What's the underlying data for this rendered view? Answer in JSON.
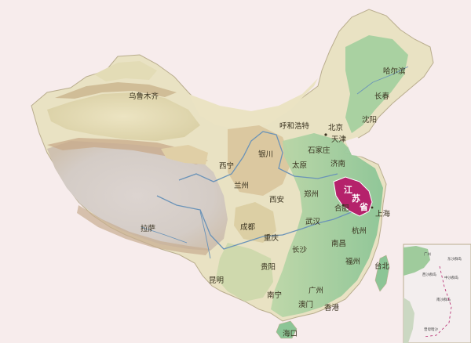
{
  "map": {
    "highlight_province": {
      "name_parts": [
        "江",
        "苏",
        "省"
      ],
      "color": "#b5226b"
    },
    "colors": {
      "background": "#f7ecec",
      "lowland_green": "#9fcb9c",
      "plain_light": "#e9e2c3",
      "desert": "#e5ddb8",
      "plateau_grey": "#d9d3cf",
      "mountain_brown": "#cdb48a",
      "river": "#6a93b8",
      "sea_green": "#78c49a"
    },
    "cities": [
      {
        "id": "urumqi",
        "label": "乌鲁木齐"
      },
      {
        "id": "harbin",
        "label": "哈尔滨"
      },
      {
        "id": "changchun",
        "label": "长春"
      },
      {
        "id": "shenyang",
        "label": "沈阳"
      },
      {
        "id": "hohhot",
        "label": "呼和浩特"
      },
      {
        "id": "beijing",
        "label": "北京"
      },
      {
        "id": "tianjin",
        "label": "天津"
      },
      {
        "id": "yinchuan",
        "label": "银川"
      },
      {
        "id": "shijiazhuang",
        "label": "石家庄"
      },
      {
        "id": "taiyuan",
        "label": "太原"
      },
      {
        "id": "jinan",
        "label": "济南"
      },
      {
        "id": "xining",
        "label": "西宁"
      },
      {
        "id": "lanzhou",
        "label": "兰州"
      },
      {
        "id": "zhengzhou",
        "label": "郑州"
      },
      {
        "id": "xian",
        "label": "西安"
      },
      {
        "id": "hefei",
        "label": "合肥"
      },
      {
        "id": "shanghai",
        "label": "上海"
      },
      {
        "id": "lhasa",
        "label": "拉萨"
      },
      {
        "id": "chengdu",
        "label": "成都"
      },
      {
        "id": "wuhan",
        "label": "武汉"
      },
      {
        "id": "hangzhou",
        "label": "杭州"
      },
      {
        "id": "chongqing",
        "label": "重庆"
      },
      {
        "id": "changsha",
        "label": "长沙"
      },
      {
        "id": "nanchang",
        "label": "南昌"
      },
      {
        "id": "guiyang",
        "label": "贵阳"
      },
      {
        "id": "fuzhou",
        "label": "福州"
      },
      {
        "id": "taibei",
        "label": "台北"
      },
      {
        "id": "kunming",
        "label": "昆明"
      },
      {
        "id": "guangzhou",
        "label": "广州"
      },
      {
        "id": "nanning",
        "label": "南宁"
      },
      {
        "id": "macau",
        "label": "澳门"
      },
      {
        "id": "hongkong",
        "label": "香港"
      },
      {
        "id": "haikou",
        "label": "海口"
      }
    ],
    "inset": {
      "labels": [
        "广州",
        "东沙群岛",
        "西沙群岛",
        "中沙群岛",
        "南沙群岛",
        "曾母暗沙"
      ]
    }
  }
}
